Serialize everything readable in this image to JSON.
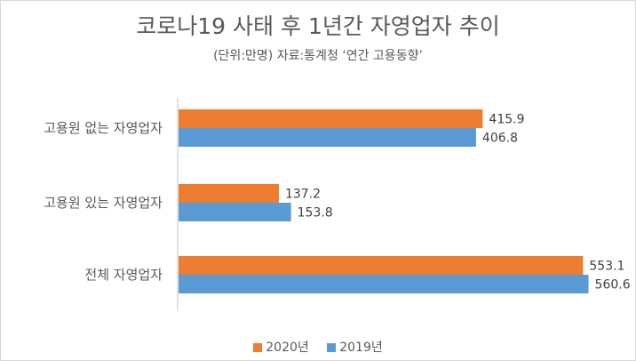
{
  "chart_data": {
    "type": "bar",
    "orientation": "horizontal",
    "title": "코로나19 사태 후 1년간 자영업자 추이",
    "subtitle": "(단위:만명)  자료:통계청 ‘연간 고용동향’",
    "categories": [
      "고용원 없는 자영업자",
      "고용원 있는 자영업자",
      "전체 자영업자"
    ],
    "series": [
      {
        "name": "2020년",
        "color": "#ED7D31",
        "values": [
          415.9,
          137.2,
          553.1
        ]
      },
      {
        "name": "2019년",
        "color": "#5B9BD5",
        "values": [
          406.8,
          153.8,
          560.6
        ]
      }
    ],
    "data_labels": true,
    "xlim": [
      0,
      600
    ],
    "grid": false,
    "legend": "bottom"
  }
}
